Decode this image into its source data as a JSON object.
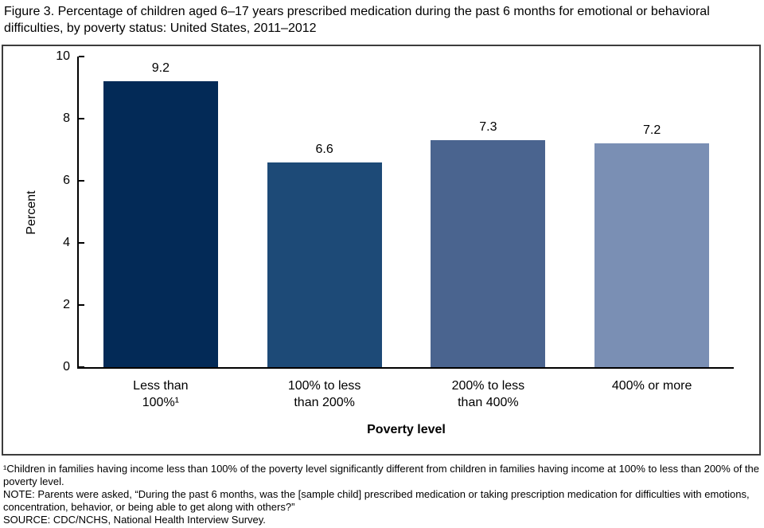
{
  "chart_data": {
    "type": "bar",
    "title": "Figure 3. Percentage of children aged 6–17 years prescribed medication during the past 6 months for emotional or behavioral difficulties, by poverty status: United States, 2011–2012",
    "categories": [
      "Less than\n100%¹",
      "100% to less\nthan 200%",
      "200% to less\nthan 400%",
      "400% or more"
    ],
    "values": [
      9.2,
      6.6,
      7.3,
      7.2
    ],
    "value_labels": [
      "9.2",
      "6.6",
      "7.3",
      "7.2"
    ],
    "bar_colors": [
      "#032a57",
      "#1d4a77",
      "#4a648f",
      "#7a8fb4"
    ],
    "xlabel": "Poverty level",
    "ylabel": "Percent",
    "ylim": [
      0,
      10
    ],
    "yticks": [
      0,
      2,
      4,
      6,
      8,
      10
    ],
    "grid": false,
    "legend": "none"
  },
  "footnotes": {
    "footnote1": "¹Children in families having income less than 100% of the poverty level significantly different from children in families having income at 100% to less than 200% of the poverty level.",
    "note": "NOTE: Parents were asked, “During the past 6 months, was the [sample child] prescribed medication or taking prescription medication for difficulties with emotions, concentration, behavior, or being able to get along with others?”",
    "source": "SOURCE: CDC/NCHS, National Health Interview Survey."
  }
}
